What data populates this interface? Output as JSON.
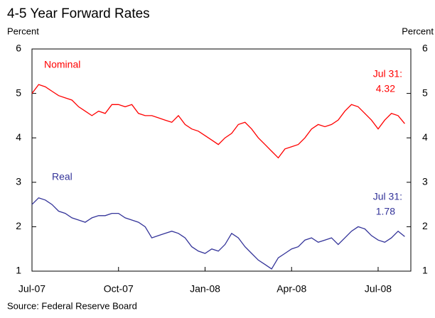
{
  "chart_data": {
    "type": "line",
    "title": "4-5 Year Forward Rates",
    "y_label": "Percent",
    "y2_label": "Percent",
    "source": "Source: Federal Reserve Board",
    "categories": [
      "Jul-07",
      null,
      null,
      null,
      null,
      null,
      null,
      null,
      null,
      null,
      null,
      null,
      null,
      "Oct-07",
      null,
      null,
      null,
      null,
      null,
      null,
      null,
      null,
      null,
      null,
      null,
      null,
      "Jan-08",
      null,
      null,
      null,
      null,
      null,
      null,
      null,
      null,
      null,
      null,
      null,
      null,
      "Apr-08",
      null,
      null,
      null,
      null,
      null,
      null,
      null,
      null,
      null,
      null,
      null,
      null,
      "Jul-08",
      null,
      null,
      null,
      null
    ],
    "series": [
      {
        "name": "Nominal",
        "color": "#ff0000",
        "annotation": "Jul 31:",
        "values": [
          5.0,
          5.2,
          5.15,
          5.05,
          4.95,
          4.9,
          4.85,
          4.7,
          4.6,
          4.5,
          4.6,
          4.55,
          4.75,
          4.75,
          4.7,
          4.75,
          4.55,
          4.5,
          4.5,
          4.45,
          4.4,
          4.35,
          4.5,
          4.3,
          4.2,
          4.15,
          4.05,
          3.95,
          3.85,
          4.0,
          4.1,
          4.3,
          4.35,
          4.2,
          4.0,
          3.85,
          3.7,
          3.55,
          3.75,
          3.8,
          3.85,
          4.0,
          4.2,
          4.3,
          4.25,
          4.3,
          4.4,
          4.6,
          4.75,
          4.7,
          4.55,
          4.4,
          4.2,
          4.4,
          4.55,
          4.5,
          4.32
        ]
      },
      {
        "name": "Real",
        "color": "#333399",
        "annotation": "Jul 31:",
        "values": [
          2.5,
          2.65,
          2.6,
          2.5,
          2.35,
          2.3,
          2.2,
          2.15,
          2.1,
          2.2,
          2.25,
          2.25,
          2.3,
          2.3,
          2.2,
          2.15,
          2.1,
          2.0,
          1.75,
          1.8,
          1.85,
          1.9,
          1.85,
          1.75,
          1.55,
          1.45,
          1.4,
          1.5,
          1.45,
          1.6,
          1.85,
          1.75,
          1.55,
          1.4,
          1.25,
          1.15,
          1.05,
          1.3,
          1.4,
          1.5,
          1.55,
          1.7,
          1.75,
          1.65,
          1.7,
          1.75,
          1.6,
          1.75,
          1.9,
          2.0,
          1.95,
          1.8,
          1.7,
          1.65,
          1.75,
          1.9,
          1.78
        ]
      }
    ],
    "ylim": [
      1,
      6
    ],
    "yticks": [
      1,
      2,
      3,
      4,
      5,
      6
    ],
    "y2lim": [
      1,
      6
    ],
    "y2ticks": [
      1,
      2,
      3,
      4,
      5,
      6
    ]
  }
}
